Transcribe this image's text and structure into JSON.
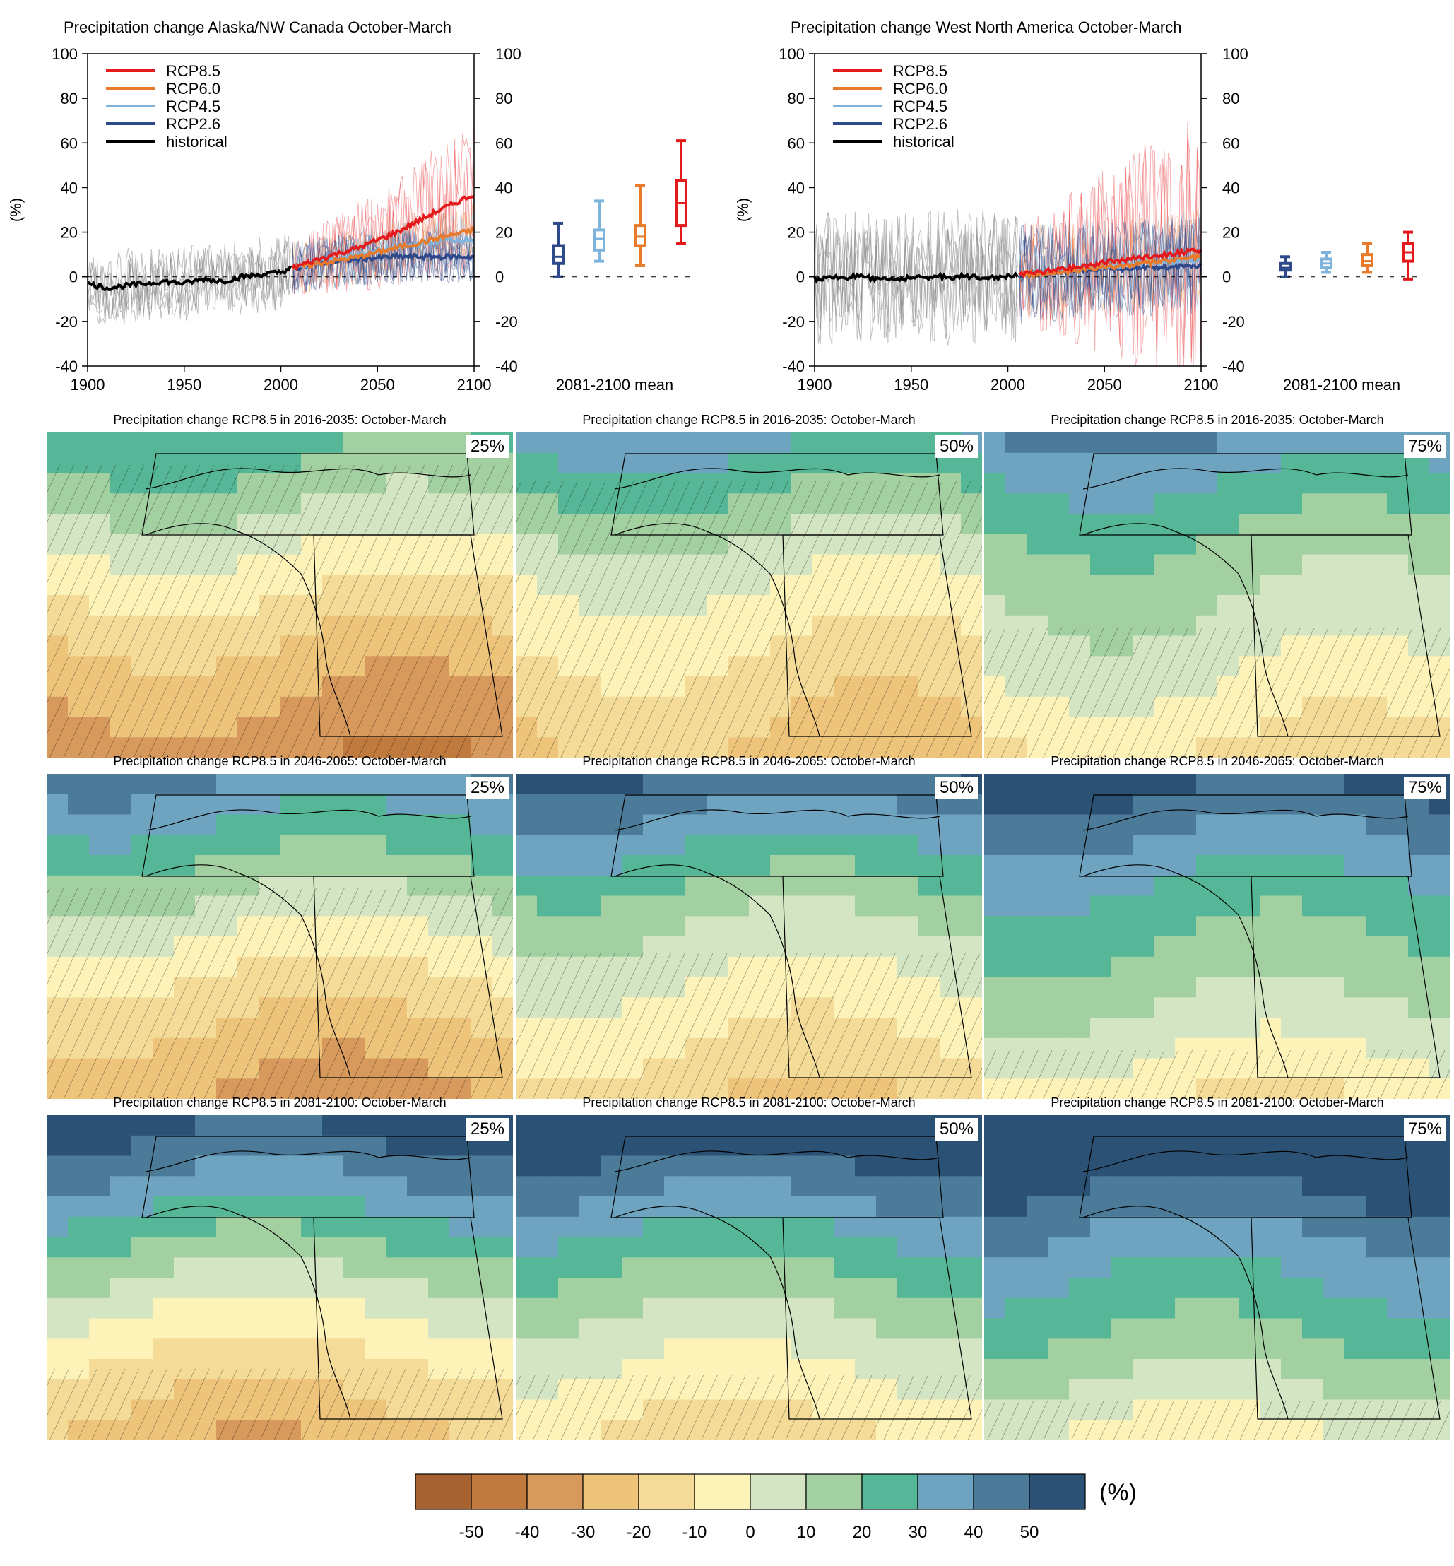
{
  "colors": {
    "rcp85": "#e41a1c",
    "rcp60": "#e87a2c",
    "rcp45": "#7eb4dc",
    "rcp26": "#2f4a8a",
    "historical": "#000000",
    "hist_spread": "#8c8c8c"
  },
  "colorbar": {
    "ticks": [
      "-50",
      "-40",
      "-30",
      "-20",
      "-10",
      "0",
      "10",
      "20",
      "30",
      "40",
      "50"
    ],
    "colors": [
      "#a66230",
      "#c17a3e",
      "#d89a5c",
      "#edc47a",
      "#f4dc98",
      "#fdf3b9",
      "#d3e5c2",
      "#a3d0a0",
      "#55b798",
      "#6ea4c0",
      "#4b7b99",
      "#2b5274"
    ],
    "unit": "(%)"
  },
  "chart_data": [
    {
      "type": "line",
      "title": "Precipitation change Alaska/NW Canada October-March",
      "ylabel": "(%)",
      "xlim": [
        1900,
        2100
      ],
      "ylim": [
        -40,
        100
      ],
      "x_ticks": [
        "1900",
        "1950",
        "2000",
        "2050",
        "2100"
      ],
      "y_ticks": [
        "-40",
        "-20",
        "0",
        "20",
        "40",
        "60",
        "80",
        "100"
      ],
      "legend": [
        "RCP8.5",
        "RCP6.0",
        "RCP4.5",
        "RCP2.6",
        "historical"
      ],
      "legend_position": "top-left",
      "series": [
        {
          "name": "historical",
          "x": [
            1900,
            1910,
            1920,
            1930,
            1940,
            1950,
            1960,
            1970,
            1980,
            1990,
            2000,
            2005
          ],
          "values": [
            -3,
            -5,
            -4,
            -3,
            -2,
            -3,
            -1,
            -2,
            0,
            1,
            2,
            4
          ]
        },
        {
          "name": "RCP2.6",
          "x": [
            2006,
            2020,
            2040,
            2060,
            2080,
            2100
          ],
          "values": [
            4,
            6,
            8,
            9,
            9,
            9
          ]
        },
        {
          "name": "RCP4.5",
          "x": [
            2006,
            2020,
            2040,
            2060,
            2080,
            2100
          ],
          "values": [
            4,
            7,
            10,
            13,
            16,
            17
          ]
        },
        {
          "name": "RCP6.0",
          "x": [
            2006,
            2020,
            2040,
            2060,
            2080,
            2100
          ],
          "values": [
            4,
            6,
            9,
            13,
            17,
            21
          ]
        },
        {
          "name": "RCP8.5",
          "x": [
            2006,
            2020,
            2040,
            2060,
            2080,
            2100
          ],
          "values": [
            4,
            8,
            13,
            20,
            29,
            37
          ]
        }
      ],
      "boxplot_label": "2081-2100 mean",
      "boxplots": [
        {
          "name": "RCP2.6",
          "min": 0,
          "q1": 6,
          "median": 9,
          "q3": 14,
          "max": 24
        },
        {
          "name": "RCP4.5",
          "min": 7,
          "q1": 12,
          "median": 17,
          "q3": 21,
          "max": 34
        },
        {
          "name": "RCP6.0",
          "min": 5,
          "q1": 14,
          "median": 18,
          "q3": 23,
          "max": 41
        },
        {
          "name": "RCP8.5",
          "min": 15,
          "q1": 23,
          "median": 33,
          "q3": 43,
          "max": 61
        }
      ]
    },
    {
      "type": "line",
      "title": "Precipitation change West North America October-March",
      "ylabel": "(%)",
      "xlim": [
        1900,
        2100
      ],
      "ylim": [
        -40,
        100
      ],
      "x_ticks": [
        "1900",
        "1950",
        "2000",
        "2050",
        "2100"
      ],
      "y_ticks": [
        "-40",
        "-20",
        "0",
        "20",
        "40",
        "60",
        "80",
        "100"
      ],
      "legend": [
        "RCP8.5",
        "RCP6.0",
        "RCP4.5",
        "RCP2.6",
        "historical"
      ],
      "legend_position": "top-left",
      "series": [
        {
          "name": "historical",
          "x": [
            1900,
            1920,
            1940,
            1960,
            1980,
            2000,
            2005
          ],
          "values": [
            -1,
            0,
            -1,
            0,
            0,
            0,
            1
          ]
        },
        {
          "name": "RCP2.6",
          "x": [
            2006,
            2040,
            2070,
            2100
          ],
          "values": [
            1,
            3,
            4,
            5
          ]
        },
        {
          "name": "RCP4.5",
          "x": [
            2006,
            2040,
            2070,
            2100
          ],
          "values": [
            1,
            4,
            6,
            7
          ]
        },
        {
          "name": "RCP6.0",
          "x": [
            2006,
            2040,
            2070,
            2100
          ],
          "values": [
            1,
            3,
            6,
            9
          ]
        },
        {
          "name": "RCP8.5",
          "x": [
            2006,
            2040,
            2070,
            2100
          ],
          "values": [
            1,
            5,
            9,
            12
          ]
        }
      ],
      "boxplot_label": "2081-2100 mean",
      "boxplots": [
        {
          "name": "RCP2.6",
          "min": 0,
          "q1": 3,
          "median": 4,
          "q3": 6,
          "max": 9
        },
        {
          "name": "RCP4.5",
          "min": 2,
          "q1": 4,
          "median": 6,
          "q3": 8,
          "max": 11
        },
        {
          "name": "RCP6.0",
          "min": 2,
          "q1": 5,
          "median": 7,
          "q3": 10,
          "max": 15
        },
        {
          "name": "RCP8.5",
          "min": -1,
          "q1": 7,
          "median": 11,
          "q3": 15,
          "max": 20
        }
      ]
    },
    {
      "type": "heatmap",
      "panels": [
        {
          "title": "Precipitation change RCP8.5 in 2016-2035: October-March",
          "percentile": "25%"
        },
        {
          "title": "Precipitation change RCP8.5 in 2016-2035: October-March",
          "percentile": "50%"
        },
        {
          "title": "Precipitation change RCP8.5 in 2016-2035: October-March",
          "percentile": "75%"
        },
        {
          "title": "Precipitation change RCP8.5 in 2046-2065: October-March",
          "percentile": "25%"
        },
        {
          "title": "Precipitation change RCP8.5 in 2046-2065: October-March",
          "percentile": "50%"
        },
        {
          "title": "Precipitation change RCP8.5 in 2046-2065: October-March",
          "percentile": "75%"
        },
        {
          "title": "Precipitation change RCP8.5 in 2081-2100: October-March",
          "percentile": "25%"
        },
        {
          "title": "Precipitation change RCP8.5 in 2081-2100: October-March",
          "percentile": "50%"
        },
        {
          "title": "Precipitation change RCP8.5 in 2081-2100: October-March",
          "percentile": "75%"
        }
      ]
    }
  ]
}
